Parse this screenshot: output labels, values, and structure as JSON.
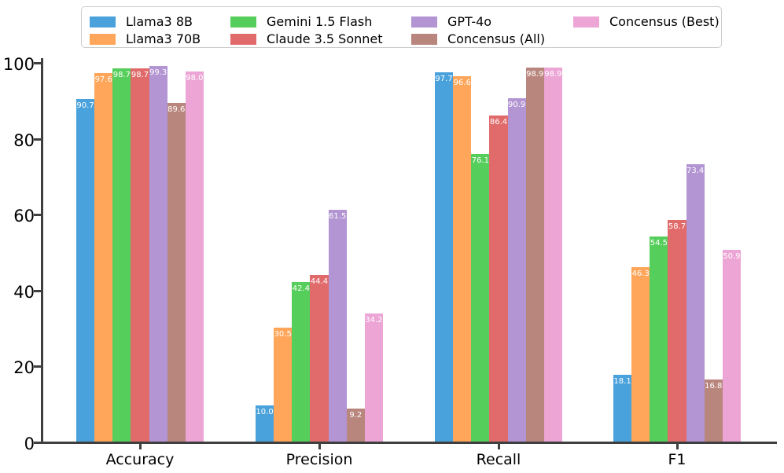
{
  "chart_data": {
    "type": "bar",
    "title": "",
    "categories": [
      "Accuracy",
      "Precision",
      "Recall",
      "F1"
    ],
    "series": [
      {
        "name": "Llama3 8B",
        "color": "#4AA2DC",
        "values": [
          90.7,
          10.0,
          97.7,
          18.1
        ]
      },
      {
        "name": "Llama3 70B",
        "color": "#FFA65A",
        "values": [
          97.6,
          30.5,
          96.6,
          46.3
        ]
      },
      {
        "name": "Gemini 1.5 Flash",
        "color": "#56CE5B",
        "values": [
          98.7,
          42.4,
          76.1,
          54.5
        ]
      },
      {
        "name": "Claude 3.5 Sonnet",
        "color": "#E16A6A",
        "values": [
          98.7,
          44.4,
          86.4,
          58.7
        ]
      },
      {
        "name": "GPT-4o",
        "color": "#B295D2",
        "values": [
          99.3,
          61.5,
          90.9,
          73.4
        ]
      },
      {
        "name": "Concensus (All)",
        "color": "#B9867E",
        "values": [
          89.6,
          9.2,
          98.9,
          16.8
        ]
      },
      {
        "name": "Concensus (Best)",
        "color": "#ECA5D5",
        "values": [
          98.0,
          34.2,
          98.9,
          50.9
        ]
      }
    ],
    "ylabel": "",
    "xlabel": "",
    "ylim": [
      0,
      100
    ],
    "yticks": [
      0,
      20,
      40,
      60,
      80,
      100
    ],
    "bar_value_labels": true,
    "value_label_color": "#ffffff",
    "grid": false,
    "legend_position": "top",
    "legend_columns": [
      [
        0,
        1
      ],
      [
        2,
        3
      ],
      [
        4,
        5
      ],
      [
        6
      ]
    ],
    "axis_color": "#3f3f3f",
    "text_color": "#000000"
  }
}
